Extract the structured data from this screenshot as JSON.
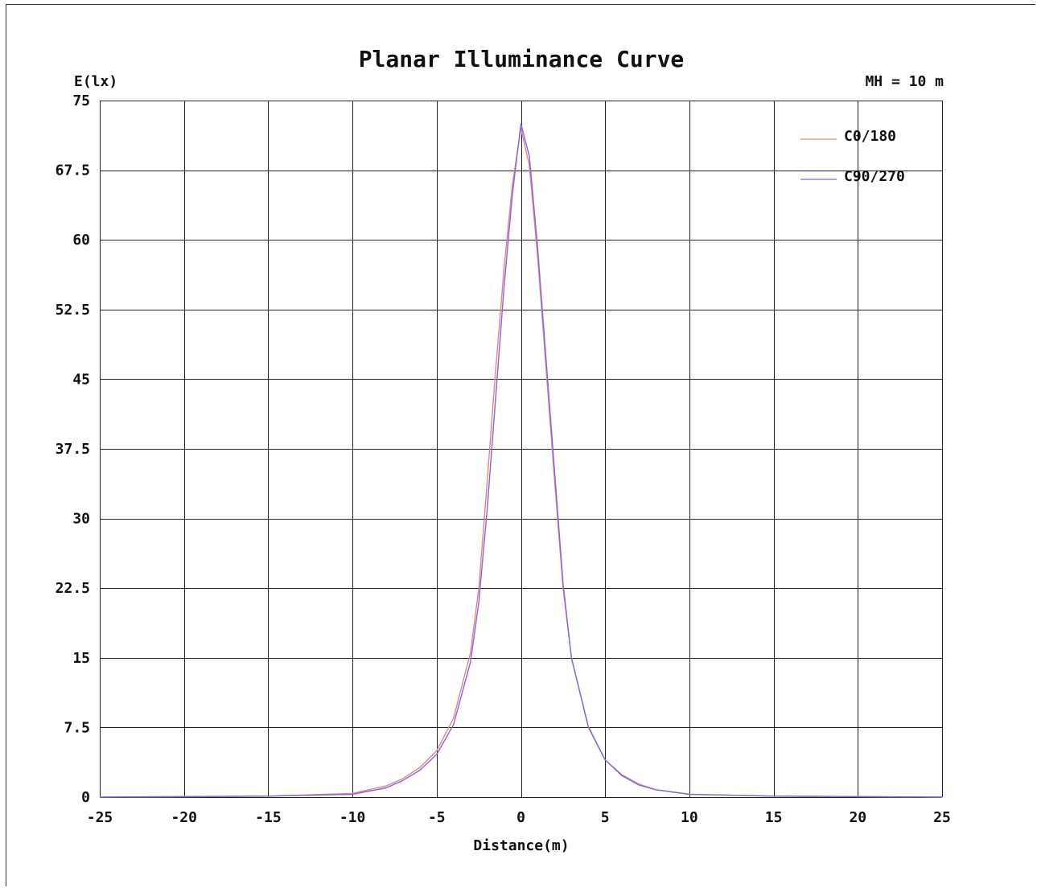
{
  "chart_data": {
    "type": "line",
    "title": "Planar Illuminance Curve",
    "ylabel": "E(lx)",
    "xlabel": "Distance(m)",
    "annotation": "MH = 10 m",
    "xlim": [
      -25,
      25
    ],
    "ylim": [
      0,
      75
    ],
    "x_ticks": [
      -25,
      -20,
      -15,
      -10,
      -5,
      0,
      5,
      10,
      15,
      20,
      25
    ],
    "x_tick_labels": [
      "-25",
      "-20",
      "-15",
      "-10",
      "-5",
      "0",
      "5",
      "10",
      "15",
      "20",
      "25"
    ],
    "y_ticks": [
      0,
      7.5,
      15,
      22.5,
      30,
      37.5,
      45,
      52.5,
      60,
      67.5,
      75
    ],
    "y_tick_labels": [
      "0",
      "7.5",
      "15",
      "22.5",
      "30",
      "37.5",
      "45",
      "52.5",
      "60",
      "67.5",
      "75"
    ],
    "grid": true,
    "legend_position": "top-right",
    "series": [
      {
        "name": "C0/180",
        "color": "#f08080",
        "x": [
          -25,
          -15,
          -10,
          -8,
          -7,
          -6,
          -5,
          -4,
          -3,
          -2.5,
          -2,
          -1.5,
          -1,
          -0.5,
          0,
          0.5,
          1,
          1.5,
          2,
          2.5,
          3,
          4,
          5,
          6,
          7,
          8,
          10,
          15,
          25
        ],
        "y": [
          0,
          0.1,
          0.4,
          1.2,
          2.0,
          3.2,
          5.0,
          8.5,
          15.5,
          22.5,
          34,
          46,
          57,
          66,
          72,
          68,
          58,
          46,
          34,
          22.5,
          15.0,
          7.5,
          4.0,
          2.4,
          1.4,
          0.8,
          0.3,
          0.1,
          0
        ]
      },
      {
        "name": "C90/270",
        "color": "#7b68ee",
        "x": [
          -25,
          -15,
          -10,
          -8,
          -7,
          -6,
          -5,
          -4,
          -3,
          -2.5,
          -2,
          -1.5,
          -1,
          -0.5,
          0,
          0.5,
          1,
          1.5,
          2,
          2.5,
          3,
          4,
          5,
          6,
          7,
          8,
          10,
          15,
          25
        ],
        "y": [
          0,
          0.1,
          0.3,
          1.0,
          1.8,
          2.9,
          4.6,
          7.8,
          14.5,
          21,
          31,
          43,
          55,
          65,
          72.5,
          69,
          59,
          47,
          35,
          23,
          15.0,
          7.6,
          4.0,
          2.3,
          1.3,
          0.8,
          0.3,
          0.1,
          0
        ]
      }
    ]
  }
}
